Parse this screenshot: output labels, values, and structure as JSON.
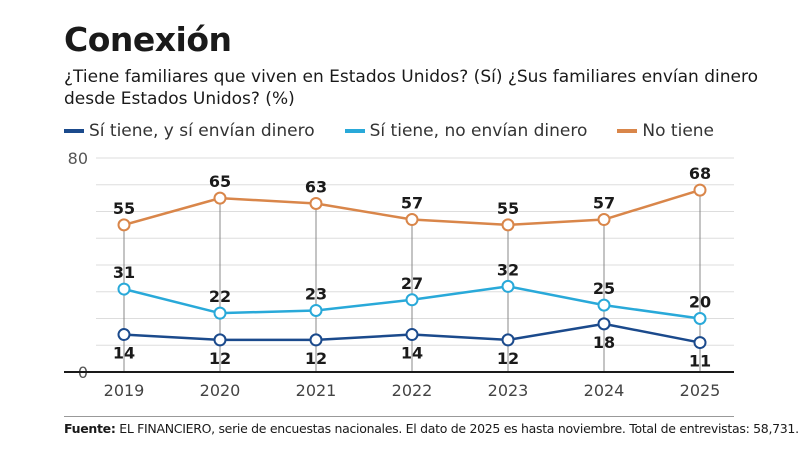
{
  "header": {
    "title": "Conexión",
    "subtitle": "¿Tiene familiares que viven en Estados Unidos? (Sí) ¿Sus familiares envían dinero desde Estados Unidos? (%)"
  },
  "footer": {
    "source_label": "Fuente:",
    "source_text": " EL FINANCIERO, serie de encuestas nacionales. El dato de 2025 es hasta noviembre. Total de entrevistas: 58,731."
  },
  "colors": {
    "send_money": "#1b4a8c",
    "no_send": "#29a9d9",
    "no_family": "#d9864a",
    "grid": "#dddddd",
    "axis": "#1a1a1a",
    "dropline": "#888888"
  },
  "chart_data": {
    "type": "line",
    "title": "Conexión",
    "subtitle": "¿Tiene familiares que viven en Estados Unidos? (Sí) ¿Sus familiares envían dinero desde Estados Unidos? (%)",
    "xlabel": "",
    "ylabel": "",
    "x": [
      "2019",
      "2020",
      "2021",
      "2022",
      "2023",
      "2024",
      "2025"
    ],
    "ylim": [
      0,
      80
    ],
    "yticks": [
      0,
      80
    ],
    "gridlines": [
      10,
      20,
      30,
      40,
      50,
      60,
      70,
      80
    ],
    "grid": true,
    "legend_position": "top-left",
    "series": [
      {
        "name": "Sí tiene, y sí envían dinero",
        "color_key": "send_money",
        "values": [
          14,
          12,
          12,
          14,
          12,
          18,
          11
        ],
        "label_pos": "below"
      },
      {
        "name": "Sí tiene, no envían dinero",
        "color_key": "no_send",
        "values": [
          31,
          22,
          23,
          27,
          32,
          25,
          20
        ],
        "label_pos": "above"
      },
      {
        "name": "No tiene",
        "color_key": "no_family",
        "values": [
          55,
          65,
          63,
          57,
          55,
          57,
          68
        ],
        "label_pos": "above"
      }
    ]
  }
}
